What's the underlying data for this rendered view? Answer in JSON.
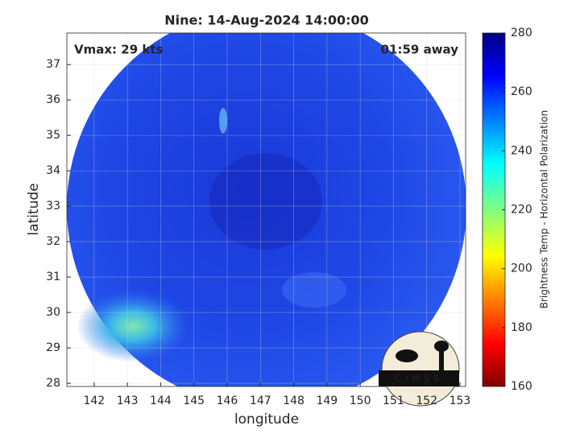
{
  "chart_data": {
    "type": "image",
    "title": "Nine: 14-Aug-2024 14:00:00",
    "xlabel": "longitude",
    "ylabel": "latitude",
    "xlim": [
      141.18,
      153.17
    ],
    "xticks": [
      142,
      143,
      144,
      145,
      146,
      147,
      148,
      149,
      150,
      151,
      152,
      153
    ],
    "ylim": [
      27.91,
      37.89
    ],
    "yticks": [
      28,
      29,
      30,
      31,
      32,
      33,
      34,
      35,
      36,
      37
    ],
    "grid": true,
    "annotations": [
      "Vmax: 29 kts",
      "01:59 away"
    ],
    "logo": "CIMSS",
    "colorbar": {
      "label": "Brightness Temp - Horizontal Polarization",
      "lim": [
        160,
        280
      ],
      "ticks": [
        160,
        180,
        200,
        220,
        240,
        260,
        280
      ]
    }
  }
}
